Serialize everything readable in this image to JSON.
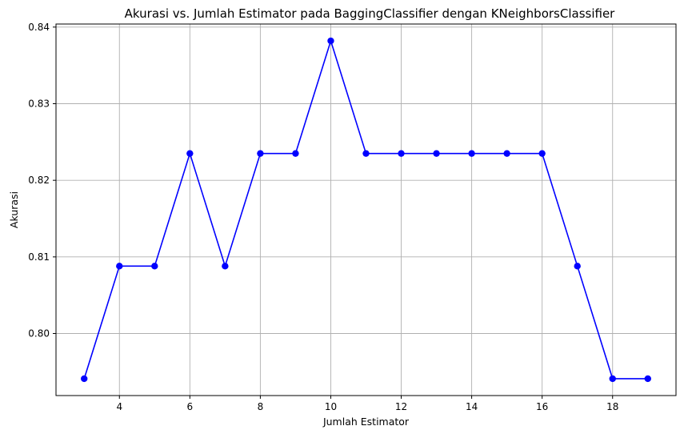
{
  "chart_data": {
    "type": "line",
    "title": "Akurasi vs. Jumlah Estimator pada BaggingClassifier dengan KNeighborsClassifier",
    "xlabel": "Jumlah Estimator",
    "ylabel": "Akurasi",
    "x": [
      3,
      4,
      5,
      6,
      7,
      8,
      9,
      10,
      11,
      12,
      13,
      14,
      15,
      16,
      17,
      18,
      19
    ],
    "series": [
      {
        "values": [
          0.7941,
          0.8088,
          0.8088,
          0.8235,
          0.8088,
          0.8235,
          0.8235,
          0.8382,
          0.8235,
          0.8235,
          0.8235,
          0.8235,
          0.8235,
          0.8235,
          0.8088,
          0.7941,
          0.7941
        ],
        "color": "#0000ff",
        "marker": "circle"
      }
    ],
    "xlim": [
      2.2,
      19.8
    ],
    "ylim": [
      0.7919,
      0.8404
    ],
    "xticks": [
      4,
      6,
      8,
      10,
      12,
      14,
      16,
      18
    ],
    "yticks": [
      0.8,
      0.81,
      0.82,
      0.83,
      0.84
    ],
    "ytick_labels": [
      "0.80",
      "0.81",
      "0.82",
      "0.83",
      "0.84"
    ],
    "grid": true,
    "legend": "none"
  }
}
